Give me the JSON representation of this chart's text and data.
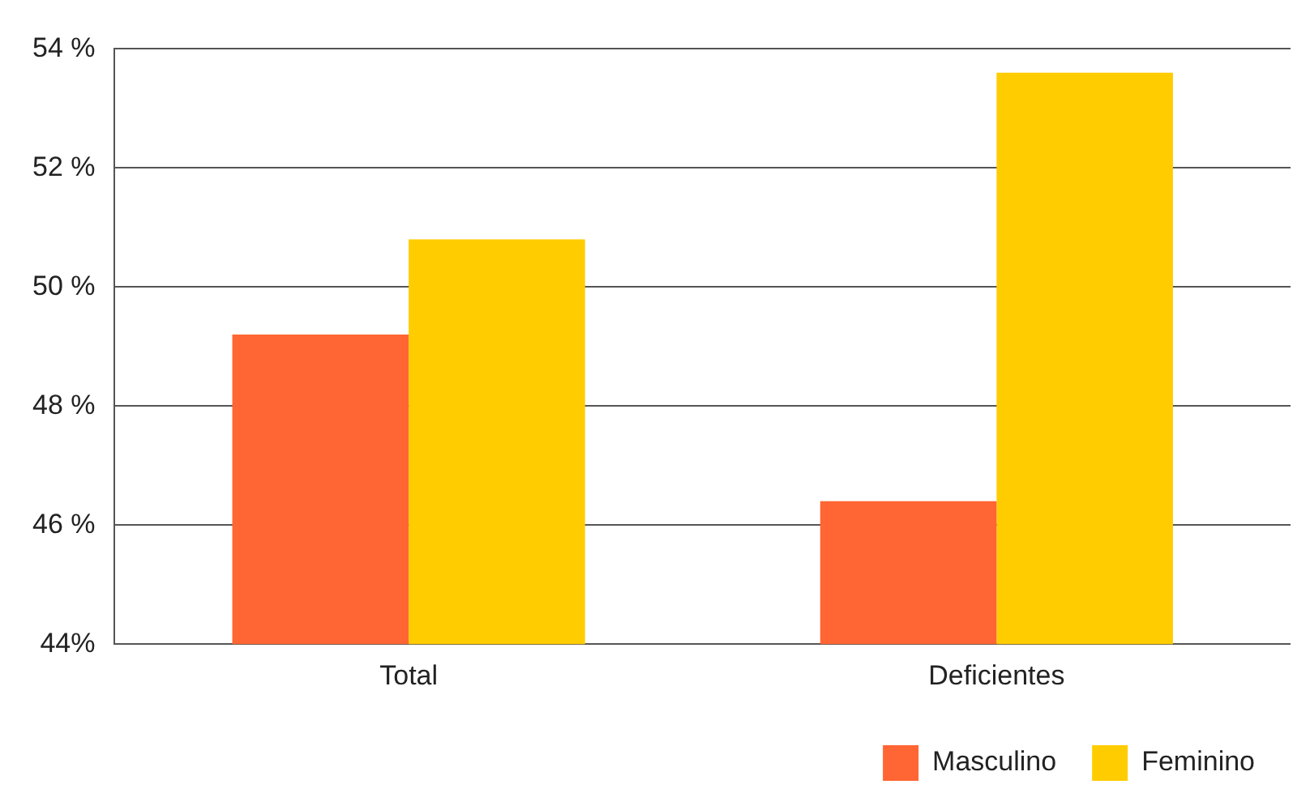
{
  "chart_data": {
    "type": "bar",
    "categories": [
      "Total",
      "Deficientes"
    ],
    "series": [
      {
        "name": "Masculino",
        "color": "#ff6633",
        "values": [
          49.2,
          46.4
        ]
      },
      {
        "name": "Feminino",
        "color": "#ffcc00",
        "values": [
          50.8,
          53.6
        ]
      }
    ],
    "ylim": [
      44,
      54
    ],
    "yticks": [
      {
        "value": 44,
        "label": "44%"
      },
      {
        "value": 46,
        "label": "46 %"
      },
      {
        "value": 48,
        "label": "48 %"
      },
      {
        "value": 50,
        "label": "50 %"
      },
      {
        "value": 52,
        "label": "52 %"
      },
      {
        "value": 54,
        "label": "54 %"
      }
    ],
    "grid": "y",
    "legend": "bottom right"
  }
}
